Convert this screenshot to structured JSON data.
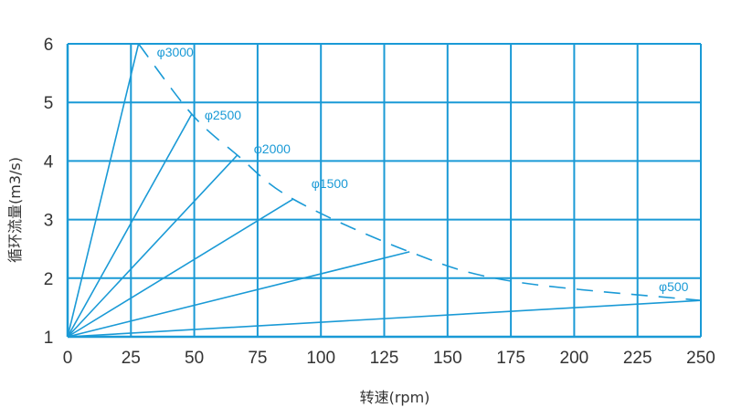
{
  "chart_data": {
    "type": "line",
    "xlabel": "转速(rpm)",
    "ylabel": "循环流量(m3/s)",
    "xlim": [
      0,
      250
    ],
    "ylim": [
      1,
      6
    ],
    "x_ticks": [
      "0",
      "25",
      "50",
      "75",
      "100",
      "125",
      "150",
      "175",
      "200",
      "225",
      "250"
    ],
    "y_ticks": [
      "1",
      "2",
      "3",
      "4",
      "5",
      "6"
    ],
    "grid": true,
    "color": "#1a9ad6",
    "series": [
      {
        "name": "φ3000",
        "x": [
          0,
          28
        ],
        "y": [
          1,
          6
        ]
      },
      {
        "name": "φ2500",
        "x": [
          0,
          49
        ],
        "y": [
          1,
          4.8
        ]
      },
      {
        "name": "φ2000",
        "x": [
          0,
          67
        ],
        "y": [
          1,
          4.1
        ]
      },
      {
        "name": "φ1500",
        "x": [
          0,
          89
        ],
        "y": [
          1,
          3.35
        ]
      },
      {
        "name": "",
        "x": [
          0,
          135
        ],
        "y": [
          1,
          2.45
        ]
      },
      {
        "name": "φ500",
        "x": [
          0,
          250
        ],
        "y": [
          1,
          1.62
        ]
      }
    ],
    "envelope": {
      "style": "dashed",
      "x": [
        28,
        49,
        67,
        89,
        135,
        175,
        250
      ],
      "y": [
        6,
        4.8,
        4.1,
        3.35,
        2.45,
        1.95,
        1.62
      ]
    }
  }
}
